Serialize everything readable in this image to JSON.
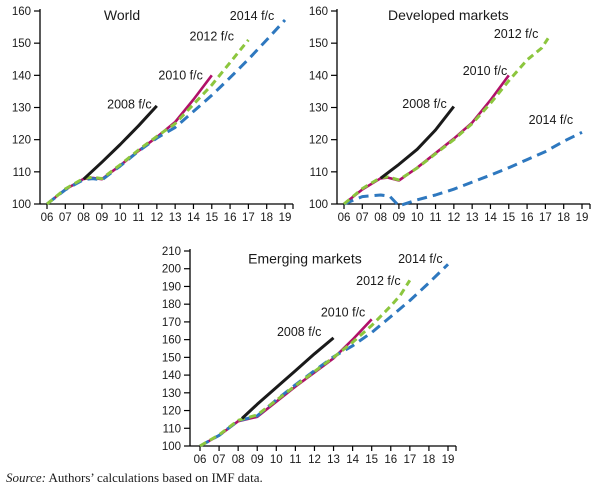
{
  "source_note": {
    "prefix": "Source:",
    "text": "Authors’ calculations based on IMF data."
  },
  "colors": {
    "fc2008": "#1a1a1a",
    "fc2010": "#b11069",
    "fc2012": "#8cc63e",
    "fc2014": "#2e78bf",
    "axis": "#000000"
  },
  "chart_data": [
    {
      "type": "line",
      "title": {
        "text": "World",
        "year": 2010.1,
        "value": 158.8
      },
      "x_start": 2006,
      "x_tick_labels": [
        "06",
        "07",
        "08",
        "09",
        "10",
        "11",
        "12",
        "13",
        "14",
        "15",
        "16",
        "17",
        "18",
        "19"
      ],
      "ylim": [
        100,
        160
      ],
      "ytick_step": 10,
      "grid": false,
      "series": [
        {
          "name": "2008 f/c",
          "color": "#1a1a1a",
          "style": "solid",
          "points": [
            [
              2008,
              107.7
            ],
            [
              2009,
              113.0
            ],
            [
              2010,
              118.5
            ],
            [
              2011,
              124.3
            ],
            [
              2012,
              130.5
            ]
          ]
        },
        {
          "name": "2010 f/c",
          "color": "#b11069",
          "style": "solid",
          "points": [
            [
              2006,
              100
            ],
            [
              2007,
              104.5
            ],
            [
              2008,
              107.8
            ],
            [
              2008.5,
              108.1
            ],
            [
              2009,
              107.7
            ],
            [
              2010,
              112.0
            ],
            [
              2011,
              116.5
            ],
            [
              2012,
              120.8
            ],
            [
              2013,
              125.5
            ],
            [
              2014,
              132.5
            ],
            [
              2015,
              140.0
            ]
          ]
        },
        {
          "name": "2012 f/c",
          "color": "#8cc63e",
          "style": "dashed",
          "points": [
            [
              2006,
              100
            ],
            [
              2007,
              104.7
            ],
            [
              2008,
              108.0
            ],
            [
              2008.5,
              108.3
            ],
            [
              2009,
              107.9
            ],
            [
              2010,
              112.2
            ],
            [
              2011,
              116.8
            ],
            [
              2012,
              121.0
            ],
            [
              2013,
              125.0
            ],
            [
              2014,
              131.0
            ],
            [
              2015,
              137.0
            ],
            [
              2016,
              144.0
            ],
            [
              2017,
              151.0
            ]
          ]
        },
        {
          "name": "2014 f/c",
          "color": "#2e78bf",
          "style": "dashed-long",
          "points": [
            [
              2006,
              100
            ],
            [
              2007,
              104.4
            ],
            [
              2008,
              107.6
            ],
            [
              2008.5,
              107.9
            ],
            [
              2009,
              107.5
            ],
            [
              2010,
              111.8
            ],
            [
              2011,
              116.4
            ],
            [
              2012,
              120.5
            ],
            [
              2013,
              123.8
            ],
            [
              2014,
              128.8
            ],
            [
              2015,
              133.8
            ],
            [
              2016,
              139.3
            ],
            [
              2017,
              145.0
            ],
            [
              2018,
              151.0
            ],
            [
              2019,
              157.2
            ]
          ]
        }
      ],
      "annotations": [
        {
          "text": "2008 f/c",
          "year": 2010.5,
          "value": 131.0
        },
        {
          "text": "2010 f/c",
          "year": 2013.3,
          "value": 140.0
        },
        {
          "text": "2012 f/c",
          "year": 2015.0,
          "value": 152.0
        },
        {
          "text": "2014 f/c",
          "year": 2017.2,
          "value": 158.5
        }
      ]
    },
    {
      "type": "line",
      "title": {
        "text": "Developed markets",
        "year": 2011.7,
        "value": 158.8
      },
      "x_start": 2006,
      "x_tick_labels": [
        "06",
        "07",
        "08",
        "09",
        "10",
        "11",
        "12",
        "13",
        "14",
        "15",
        "16",
        "17",
        "18",
        "19"
      ],
      "ylim": [
        100,
        160
      ],
      "ytick_step": 10,
      "grid": false,
      "series": [
        {
          "name": "2008 f/c",
          "color": "#1a1a1a",
          "style": "solid",
          "points": [
            [
              2008,
              108.0
            ],
            [
              2009,
              112.3
            ],
            [
              2010,
              117.0
            ],
            [
              2011,
              123.0
            ],
            [
              2012,
              130.3
            ]
          ]
        },
        {
          "name": "2010 f/c",
          "color": "#b11069",
          "style": "solid",
          "points": [
            [
              2006,
              100
            ],
            [
              2007,
              104.5
            ],
            [
              2008,
              108.0
            ],
            [
              2008.4,
              108.2
            ],
            [
              2009,
              107.3
            ],
            [
              2010,
              111.3
            ],
            [
              2011,
              115.8
            ],
            [
              2012,
              120.3
            ],
            [
              2013,
              125.3
            ],
            [
              2014,
              132.3
            ],
            [
              2015,
              140.0
            ]
          ]
        },
        {
          "name": "2012 f/c",
          "color": "#8cc63e",
          "style": "dashed",
          "points": [
            [
              2006,
              100
            ],
            [
              2007,
              104.8
            ],
            [
              2008,
              108.2
            ],
            [
              2008.4,
              108.4
            ],
            [
              2009,
              107.5
            ],
            [
              2010,
              111.2
            ],
            [
              2011,
              115.6
            ],
            [
              2012,
              120.0
            ],
            [
              2013,
              125.0
            ],
            [
              2014,
              131.3
            ],
            [
              2015,
              138.3
            ],
            [
              2016,
              144.8
            ],
            [
              2016.8,
              148.5
            ],
            [
              2017.15,
              151.5
            ]
          ]
        },
        {
          "name": "2014 f/c",
          "color": "#2e78bf",
          "style": "dashed-long",
          "points": [
            [
              2006,
              100
            ],
            [
              2007,
              102.3
            ],
            [
              2008,
              102.8
            ],
            [
              2008.5,
              102.4
            ],
            [
              2009,
              99.4
            ],
            [
              2010,
              101.3
            ],
            [
              2011,
              102.8
            ],
            [
              2012,
              104.6
            ],
            [
              2013,
              106.8
            ],
            [
              2014,
              109.0
            ],
            [
              2015,
              111.3
            ],
            [
              2016,
              113.8
            ],
            [
              2017,
              116.3
            ],
            [
              2018,
              119.5
            ],
            [
              2019,
              122.3
            ]
          ]
        }
      ],
      "annotations": [
        {
          "text": "2008 f/c",
          "year": 2010.4,
          "value": 131.1
        },
        {
          "text": "2010 f/c",
          "year": 2013.7,
          "value": 141.3
        },
        {
          "text": "2012 f/c",
          "year": 2015.4,
          "value": 152.8
        },
        {
          "text": "2014 f/c",
          "year": 2017.3,
          "value": 126.1
        }
      ]
    },
    {
      "type": "line",
      "title": {
        "text": "Emerging markets",
        "year": 2011.5,
        "value": 205.9
      },
      "x_start": 2006,
      "x_tick_labels": [
        "06",
        "07",
        "08",
        "09",
        "10",
        "11",
        "12",
        "13",
        "14",
        "15",
        "16",
        "17",
        "18",
        "19"
      ],
      "ylim": [
        100,
        210
      ],
      "ytick_step": 10,
      "grid": false,
      "series": [
        {
          "name": "2008 f/c",
          "color": "#1a1a1a",
          "style": "solid",
          "points": [
            [
              2008.2,
              115.5
            ],
            [
              2009,
              123.5
            ],
            [
              2010,
              133.0
            ],
            [
              2011,
              142.5
            ],
            [
              2012,
              152.0
            ],
            [
              2013,
              161.0
            ]
          ]
        },
        {
          "name": "2010 f/c",
          "color": "#b11069",
          "style": "solid",
          "points": [
            [
              2006,
              100
            ],
            [
              2007,
              106.0
            ],
            [
              2008,
              114.0
            ],
            [
              2009,
              116.5
            ],
            [
              2010,
              125.0
            ],
            [
              2011,
              133.5
            ],
            [
              2012,
              141.5
            ],
            [
              2013,
              149.5
            ],
            [
              2014,
              160.0
            ],
            [
              2015,
              171.5
            ]
          ]
        },
        {
          "name": "2012 f/c",
          "color": "#8cc63e",
          "style": "dashed",
          "points": [
            [
              2006,
              100
            ],
            [
              2007,
              106.3
            ],
            [
              2008,
              114.5
            ],
            [
              2009,
              117.5
            ],
            [
              2010,
              125.7
            ],
            [
              2011,
              134.0
            ],
            [
              2012,
              142.0
            ],
            [
              2013,
              150.0
            ],
            [
              2014,
              158.5
            ],
            [
              2015,
              168.0
            ],
            [
              2016,
              179.0
            ],
            [
              2016.5,
              185.0
            ],
            [
              2017,
              193.5
            ]
          ]
        },
        {
          "name": "2014 f/c",
          "color": "#2e78bf",
          "style": "dashed-long",
          "points": [
            [
              2006,
              100
            ],
            [
              2007,
              106.0
            ],
            [
              2008,
              114.2
            ],
            [
              2009,
              117.0
            ],
            [
              2010,
              126.0
            ],
            [
              2011,
              134.5
            ],
            [
              2012,
              142.5
            ],
            [
              2013,
              150.3
            ],
            [
              2014,
              156.5
            ],
            [
              2015,
              164.0
            ],
            [
              2016,
              173.0
            ],
            [
              2017,
              182.0
            ],
            [
              2018,
              192.0
            ],
            [
              2019,
              202.5
            ]
          ]
        }
      ],
      "annotations": [
        {
          "text": "2008 f/c",
          "year": 2011.2,
          "value": 164.2
        },
        {
          "text": "2010 f/c",
          "year": 2013.5,
          "value": 175.3
        },
        {
          "text": "2012 f/c",
          "year": 2015.35,
          "value": 193.1
        },
        {
          "text": "2014 f/c",
          "year": 2017.55,
          "value": 205.4
        }
      ]
    }
  ]
}
